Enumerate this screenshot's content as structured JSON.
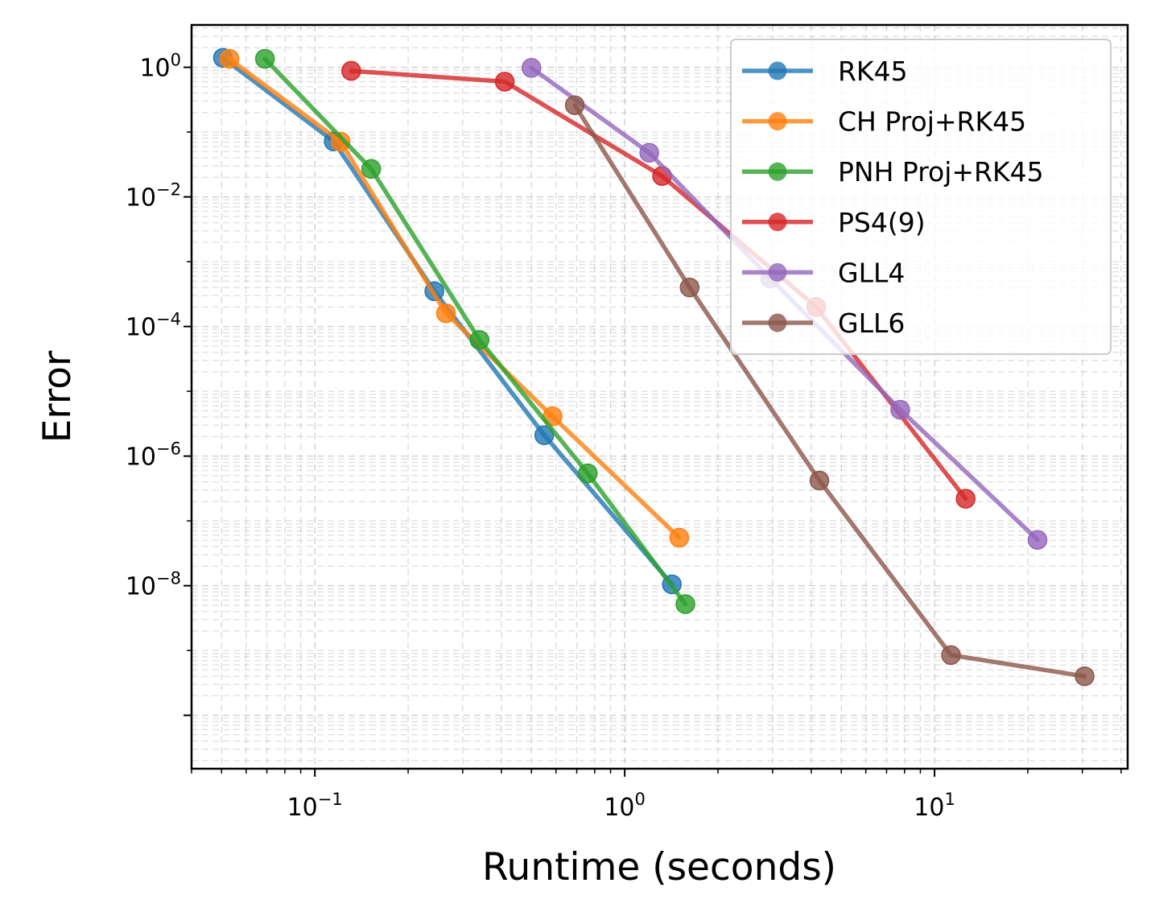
{
  "chart_data": {
    "type": "line",
    "xscale": "log",
    "yscale": "log",
    "title": "",
    "xlabel": "Runtime (seconds)",
    "ylabel": "Error",
    "xlim": [
      0.04,
      42
    ],
    "ylim": [
      1.5e-11,
      4.5
    ],
    "grid": true,
    "legend_position": "top-right",
    "x_ticks": [
      {
        "base": "10",
        "exp": "−1",
        "value": 0.1
      },
      {
        "base": "10",
        "exp": "0",
        "value": 1
      },
      {
        "base": "10",
        "exp": "1",
        "value": 10
      }
    ],
    "y_ticks": [
      {
        "base": "10",
        "exp": "0",
        "value": 1
      },
      {
        "base": "10",
        "exp": "−2",
        "value": 0.01
      },
      {
        "base": "10",
        "exp": "−4",
        "value": 0.0001
      },
      {
        "base": "10",
        "exp": "−6",
        "value": 1e-06
      },
      {
        "base": "10",
        "exp": "−8",
        "value": 1e-08
      }
    ],
    "series": [
      {
        "name": "RK45",
        "color": "#1f77b4",
        "x": [
          0.0505,
          0.115,
          0.243,
          0.55,
          1.42
        ],
        "y": [
          1.4,
          0.072,
          0.00035,
          2.1e-06,
          1.05e-08
        ]
      },
      {
        "name": "CH Proj+RK45",
        "color": "#ff7f0e",
        "x": [
          0.053,
          0.121,
          0.265,
          0.585,
          1.5
        ],
        "y": [
          1.35,
          0.071,
          0.00016,
          4.1e-06,
          5.5e-08
        ]
      },
      {
        "name": "PNH Proj+RK45",
        "color": "#2ca02c",
        "x": [
          0.069,
          0.152,
          0.34,
          0.76,
          1.57
        ],
        "y": [
          1.35,
          0.027,
          6.2e-05,
          5.4e-07,
          5.2e-09
        ]
      },
      {
        "name": "PS4(9)",
        "color": "#d62728",
        "x": [
          0.131,
          0.41,
          1.32,
          4.15,
          12.6
        ],
        "y": [
          0.88,
          0.6,
          0.021,
          0.0002,
          2.2e-07
        ]
      },
      {
        "name": "GLL4",
        "color": "#9467bd",
        "x": [
          0.5,
          1.2,
          2.95,
          7.75,
          21.5
        ],
        "y": [
          0.98,
          0.048,
          0.00055,
          5.2e-06,
          5.1e-08
        ]
      },
      {
        "name": "GLL6",
        "color": "#8c564b",
        "x": [
          0.69,
          1.62,
          4.25,
          11.3,
          30.5
        ],
        "y": [
          0.26,
          0.0004,
          4.2e-07,
          8.5e-10,
          4e-10
        ]
      }
    ]
  }
}
